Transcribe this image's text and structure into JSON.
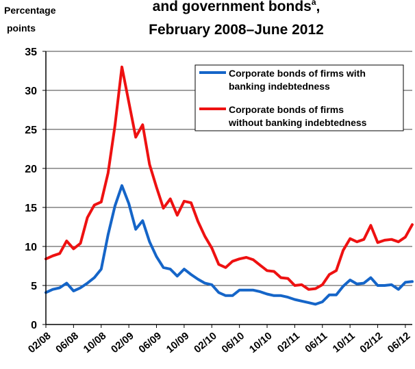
{
  "chart_data": {
    "type": "line",
    "title_lines": [
      "and government bonds",
      "February 2008–June 2012"
    ],
    "title_superscript": "a",
    "title_suffix": ",",
    "ylabel_lines": [
      "Percentage",
      "points"
    ],
    "ylim": [
      0,
      35
    ],
    "yticks": [
      0,
      5,
      10,
      15,
      20,
      25,
      30,
      35
    ],
    "xtick_labels": [
      "02/08",
      "06/08",
      "10/08",
      "02/09",
      "06/09",
      "10/09",
      "02/10",
      "06/10",
      "10/10",
      "02/11",
      "06/11",
      "10/11",
      "02/12",
      "06/12"
    ],
    "grid": true,
    "legend_position": "top-right",
    "series": [
      {
        "name": "Corporate bonds of firms with banking indebtedness",
        "legend_lines": [
          "Corporate bonds of firms with",
          "banking indebtedness"
        ],
        "color": "#1565C8",
        "values": [
          4.1,
          4.5,
          4.7,
          5.3,
          4.3,
          4.7,
          5.3,
          6.0,
          7.1,
          11.5,
          15.2,
          17.8,
          15.5,
          12.2,
          13.3,
          10.6,
          8.7,
          7.3,
          7.1,
          6.2,
          7.1,
          6.4,
          5.8,
          5.3,
          5.1,
          4.1,
          3.7,
          3.7,
          4.4,
          4.4,
          4.4,
          4.2,
          3.9,
          3.7,
          3.7,
          3.5,
          3.2,
          3.0,
          2.8,
          2.6,
          2.9,
          3.8,
          3.8,
          4.9,
          5.7,
          5.2,
          5.3,
          6.0,
          5.0,
          5.0,
          5.1,
          4.5,
          5.4,
          5.5
        ]
      },
      {
        "name": "Corporate bonds of firms without banking indebtedness",
        "legend_lines": [
          "Corporate bonds of firms",
          "without banking indebtedness"
        ],
        "color": "#EE1111",
        "values": [
          8.4,
          8.8,
          9.1,
          10.7,
          9.7,
          10.4,
          13.7,
          15.3,
          15.7,
          19.4,
          25.5,
          33.0,
          28.5,
          24.0,
          25.6,
          20.5,
          17.6,
          14.9,
          16.1,
          14.0,
          15.8,
          15.6,
          13.2,
          11.3,
          9.8,
          7.7,
          7.3,
          8.1,
          8.4,
          8.6,
          8.3,
          7.6,
          6.9,
          6.8,
          6.0,
          5.9,
          5.0,
          5.1,
          4.5,
          4.6,
          5.1,
          6.4,
          6.9,
          9.5,
          11.0,
          10.6,
          10.9,
          12.7,
          10.5,
          10.8,
          10.9,
          10.6,
          11.2,
          12.8
        ]
      }
    ]
  }
}
